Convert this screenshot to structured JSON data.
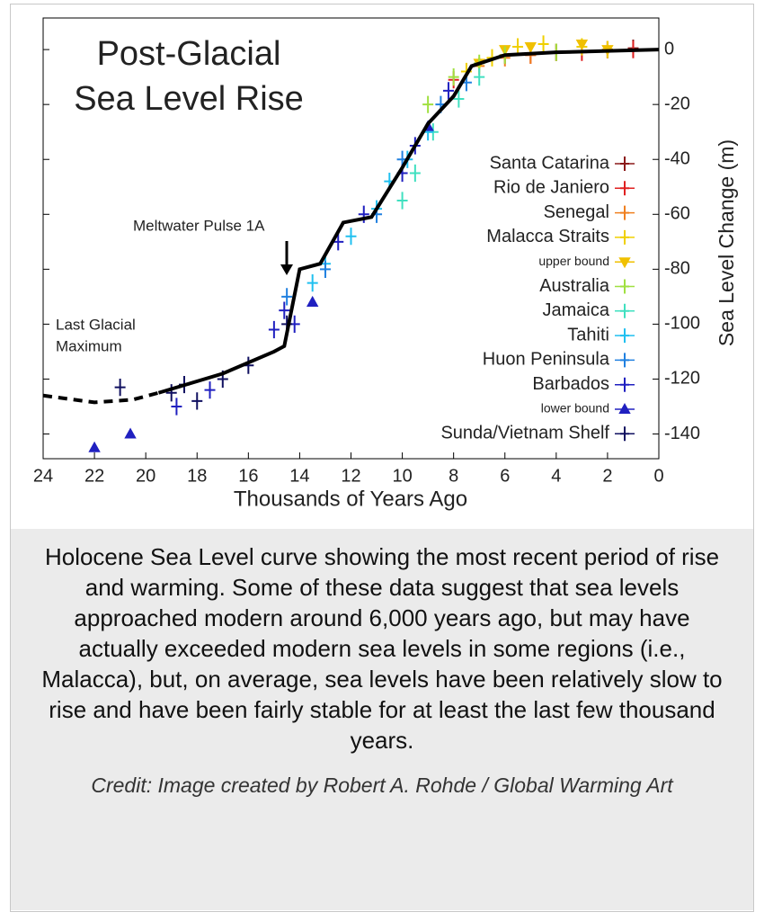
{
  "chart_data": {
    "type": "scatter",
    "title": [
      "Post-Glacial",
      "Sea Level Rise"
    ],
    "x_label": "Thousands of Years Ago",
    "y_label": "Sea Level Change (m)",
    "annotations": {
      "meltwater": "Meltwater Pulse 1A",
      "lgm": [
        "Last Glacial",
        "Maximum"
      ]
    },
    "xlim": [
      24,
      0
    ],
    "ylim": [
      -149,
      11.5
    ],
    "xticks": [
      24,
      22,
      20,
      18,
      16,
      14,
      12,
      10,
      8,
      6,
      4,
      2,
      0
    ],
    "yticks": [
      0,
      -20,
      -40,
      -60,
      -80,
      -100,
      -120,
      -140
    ],
    "curve": {
      "color": "#000000",
      "x": [
        19.5,
        17,
        15,
        14.6,
        14,
        13.2,
        12.3,
        11.2,
        10,
        9,
        8,
        7.3,
        6,
        4,
        2,
        0
      ],
      "values": [
        -125,
        -118,
        -110,
        -108,
        -80,
        -78,
        -63,
        -61,
        -43,
        -27,
        -17,
        -6,
        -2,
        -1,
        -0.5,
        0
      ]
    },
    "extrapolation": {
      "color": "#000000",
      "x": [
        24,
        22,
        20.5,
        19.5
      ],
      "values": [
        -126,
        -128.5,
        -127.5,
        -125
      ]
    },
    "series": [
      {
        "name": "Santa Catarina",
        "color": "#8b1a1a",
        "marker": "cross",
        "x": [
          6,
          4,
          2,
          1
        ],
        "values": [
          -2,
          -1,
          0,
          0.5
        ]
      },
      {
        "name": "Rio de Janiero",
        "color": "#e02020",
        "marker": "cross",
        "x": [
          8,
          5,
          3,
          2,
          1
        ],
        "values": [
          -11,
          -2,
          -1,
          0,
          0
        ]
      },
      {
        "name": "Senegal",
        "color": "#f08020",
        "marker": "cross",
        "x": [
          7,
          6,
          5,
          4
        ],
        "values": [
          -6,
          -3,
          -2,
          -1
        ]
      },
      {
        "name": "Malacca Straits",
        "color": "#f0d000",
        "marker": "cross",
        "x": [
          7.5,
          6.5,
          5.5,
          4.5,
          3,
          2
        ],
        "values": [
          -8,
          -3,
          1,
          2,
          1,
          0
        ]
      },
      {
        "name": "upper bound",
        "color": "#f0c000",
        "marker": "triangle-down",
        "x": [
          7,
          6,
          5,
          3,
          2
        ],
        "values": [
          -5,
          0,
          1,
          2,
          0
        ]
      },
      {
        "name": "Australia",
        "color": "#a0e040",
        "marker": "cross",
        "x": [
          9,
          8,
          7,
          6,
          4
        ],
        "values": [
          -20,
          -10,
          -5,
          -2,
          -1
        ]
      },
      {
        "name": "Jamaica",
        "color": "#40e0c0",
        "marker": "cross",
        "x": [
          10,
          9.5,
          8.8,
          7.8,
          7
        ],
        "values": [
          -55,
          -45,
          -30,
          -18,
          -10
        ]
      },
      {
        "name": "Tahiti",
        "color": "#20c0f0",
        "marker": "cross",
        "x": [
          13.5,
          13,
          12,
          11,
          10.5,
          9.8,
          9
        ],
        "values": [
          -85,
          -78,
          -68,
          -58,
          -48,
          -40,
          -30
        ]
      },
      {
        "name": "Huon Peninsula",
        "color": "#2080e0",
        "marker": "cross",
        "x": [
          14.5,
          13,
          11,
          10,
          8.5,
          7.5
        ],
        "values": [
          -90,
          -80,
          -60,
          -40,
          -20,
          -12
        ]
      },
      {
        "name": "Barbados",
        "color": "#2020c0",
        "marker": "cross",
        "x": [
          18.8,
          17.5,
          15,
          14.6,
          14.2,
          12.5,
          11.5,
          10,
          9.5,
          8.2
        ],
        "values": [
          -130,
          -124,
          -102,
          -95,
          -100,
          -70,
          -60,
          -45,
          -35,
          -15
        ]
      },
      {
        "name": "lower bound",
        "color": "#2020c0",
        "marker": "triangle-up",
        "x": [
          22,
          20.6,
          13.5,
          9
        ],
        "values": [
          -145,
          -140,
          -92,
          -28
        ]
      },
      {
        "name": "Sunda/Vietnam Shelf",
        "color": "#101060",
        "marker": "cross",
        "x": [
          21,
          19,
          18.5,
          18,
          17,
          16,
          14.5
        ],
        "values": [
          -123,
          -125,
          -122,
          -128,
          -120,
          -115,
          -100
        ]
      }
    ]
  },
  "caption": "Holocene Sea Level curve showing the most recent period of rise and warming. Some of these data suggest that sea levels approached modern around 6,000 years ago, but may have actually exceeded modern sea levels in some regions (i.e., Malacca), but, on average, sea levels have been relatively slow to rise and have been fairly stable for at least the last few thousand years.",
  "credit": "Credit: Image created by Robert A. Rohde / Global Warming Art"
}
